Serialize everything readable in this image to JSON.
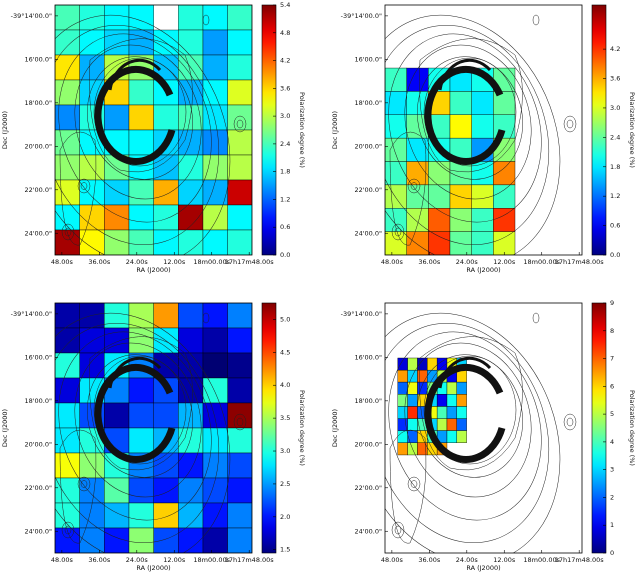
{
  "chart_data": [
    {
      "type": "heatmap",
      "colormap": "jet",
      "x_label": "RA (J2000)",
      "y_label": "Dec (J2000)",
      "colorbar_label": "Polarization degree (%)",
      "xlim": [
        50.2,
        -12.9
      ],
      "xticks": [
        {
          "value": 48,
          "label": "48.00s"
        },
        {
          "value": 36,
          "label": "36.00s"
        },
        {
          "value": 24,
          "label": "24.00s"
        },
        {
          "value": 12,
          "label": "12.00s"
        },
        {
          "value": 0,
          "label": "18m00.00s"
        },
        {
          "value": -12,
          "label": "17h17m48.00s"
        }
      ],
      "ylim": [
        13.5,
        25
      ],
      "yticks": [
        {
          "value": 14,
          "label": "-39°14'00.0\""
        },
        {
          "value": 16,
          "label": "16'00.0\""
        },
        {
          "value": 18,
          "label": "18'00.0\""
        },
        {
          "value": 20,
          "label": "20'00.0\""
        },
        {
          "value": 22,
          "label": "22'00.0\""
        },
        {
          "value": 24,
          "label": "24'00.0\""
        }
      ],
      "x_edges": [
        50.2,
        42.3,
        34.4,
        26.5,
        18.6,
        10.7,
        2.8,
        -5.1,
        -12.9
      ],
      "y_edges": [
        13.5,
        14.65,
        15.8,
        16.95,
        18.1,
        19.25,
        20.4,
        21.55,
        22.7,
        23.85,
        25.0
      ],
      "values": [
        [
          2.4,
          2.2,
          2.0,
          2.0,
          null,
          2.2,
          2.0,
          2.3
        ],
        [
          2.3,
          2.0,
          1.8,
          1.6,
          2.0,
          2.2,
          1.5,
          2.0
        ],
        [
          3.5,
          1.6,
          3.0,
          2.8,
          1.7,
          2.4,
          1.6,
          2.2
        ],
        [
          2.8,
          1.8,
          3.6,
          2.3,
          2.0,
          1.6,
          2.0,
          3.2
        ],
        [
          1.4,
          2.2,
          1.5,
          3.6,
          2.2,
          2.4,
          1.9,
          2.6
        ],
        [
          2.6,
          2.0,
          2.0,
          2.0,
          1.8,
          1.6,
          1.4,
          3.0
        ],
        [
          2.8,
          3.0,
          2.6,
          2.0,
          1.7,
          2.2,
          2.8,
          3.0
        ],
        [
          3.2,
          2.0,
          1.8,
          2.4,
          3.8,
          1.8,
          1.6,
          5.0
        ],
        [
          2.0,
          3.6,
          4.0,
          2.0,
          2.2,
          5.2,
          3.0,
          2.0
        ],
        [
          5.2,
          3.4,
          2.8,
          2.4,
          2.0,
          2.2,
          2.0,
          2.2
        ]
      ],
      "clim": [
        0,
        5.4
      ],
      "cticks": [
        {
          "value": 0,
          "label": "0.0"
        },
        0.6,
        1.2,
        1.8,
        2.4,
        {
          "value": 3,
          "label": "3.0"
        },
        3.6,
        4.2,
        4.8,
        5.4
      ]
    },
    {
      "type": "heatmap",
      "colormap": "jet",
      "x_label": "RA (J2000)",
      "y_label": "Dec (J2000)",
      "colorbar_label": "Polarization degree (%)",
      "xlim": [
        50.2,
        -12.9
      ],
      "xticks": [
        {
          "value": 48,
          "label": "48.00s"
        },
        {
          "value": 36,
          "label": "36.00s"
        },
        {
          "value": 24,
          "label": "24.00s"
        },
        {
          "value": 12,
          "label": "12.00s"
        },
        {
          "value": 0,
          "label": "18m00.00s"
        },
        {
          "value": -12,
          "label": "17h17m48.00s"
        }
      ],
      "ylim": [
        13.5,
        25
      ],
      "yticks": [
        {
          "value": 14,
          "label": "-39°14'00.0\""
        },
        {
          "value": 16,
          "label": "16'00.0\""
        },
        {
          "value": 18,
          "label": "18'00.0\""
        },
        {
          "value": 20,
          "label": "20'00.0\""
        },
        {
          "value": 22,
          "label": "22'00.0\""
        },
        {
          "value": 24,
          "label": "24'00.0\""
        }
      ],
      "x_edges": [
        50.2,
        43.26,
        36.32,
        29.38,
        22.44,
        15.5,
        8.56
      ],
      "y_edges": [
        16.4,
        17.475,
        18.55,
        19.625,
        20.7,
        21.775,
        22.85,
        23.925,
        25.0
      ],
      "values": [
        [
          2.2,
          0.6,
          2.0,
          1.8,
          2.0,
          2.4
        ],
        [
          1.8,
          2.0,
          3.4,
          2.2,
          1.8,
          2.4
        ],
        [
          2.0,
          2.4,
          2.2,
          3.2,
          2.0,
          2.2
        ],
        [
          2.4,
          1.8,
          2.0,
          2.2,
          1.4,
          2.6
        ],
        [
          2.2,
          3.6,
          2.6,
          2.4,
          2.0,
          3.8
        ],
        [
          2.8,
          2.4,
          2.4,
          3.4,
          3.0,
          2.2
        ],
        [
          2.2,
          2.8,
          4.0,
          2.6,
          2.2,
          4.2
        ],
        [
          3.0,
          3.8,
          4.2,
          2.4,
          2.2,
          3.0
        ]
      ],
      "clim": [
        0,
        5.1
      ],
      "cticks": [
        {
          "value": 0,
          "label": "0.0"
        },
        0.6,
        1.2,
        1.8,
        2.4,
        {
          "value": 3,
          "label": "3.0"
        },
        3.6,
        4.2
      ]
    },
    {
      "type": "heatmap",
      "colormap": "jet",
      "x_label": "RA (J2000)",
      "y_label": "Dec (J2000)",
      "colorbar_label": "Polarization degree (%)",
      "xlim": [
        50.2,
        -12.9
      ],
      "xticks": [
        {
          "value": 48,
          "label": "48.00s"
        },
        {
          "value": 36,
          "label": "36.00s"
        },
        {
          "value": 24,
          "label": "24.00s"
        },
        {
          "value": 12,
          "label": "12.00s"
        },
        {
          "value": 0,
          "label": "18m00.00s"
        },
        {
          "value": -12,
          "label": "17h17m48.00s"
        }
      ],
      "ylim": [
        13.5,
        25
      ],
      "yticks": [
        {
          "value": 14,
          "label": "-39°14'00.0\""
        },
        {
          "value": 16,
          "label": "16'00.0\""
        },
        {
          "value": 18,
          "label": "18'00.0\""
        },
        {
          "value": 20,
          "label": "20'00.0\""
        },
        {
          "value": 22,
          "label": "22'00.0\""
        },
        {
          "value": 24,
          "label": "24'00.0\""
        }
      ],
      "x_edges": [
        50.2,
        42.3,
        34.4,
        26.5,
        18.6,
        10.7,
        2.8,
        -5.1,
        -12.9
      ],
      "y_edges": [
        13.5,
        14.65,
        15.8,
        16.95,
        18.1,
        19.25,
        20.4,
        21.55,
        22.7,
        23.85,
        25.0
      ],
      "values": [
        [
          1.6,
          1.6,
          3.0,
          3.5,
          4.2,
          2.2,
          2.0,
          2.4
        ],
        [
          1.6,
          1.8,
          1.8,
          3.4,
          2.8,
          1.8,
          1.6,
          2.0
        ],
        [
          3.0,
          1.8,
          2.8,
          2.4,
          1.6,
          1.6,
          1.4,
          1.5
        ],
        [
          1.8,
          2.8,
          2.4,
          2.0,
          2.2,
          1.6,
          3.0,
          1.6
        ],
        [
          2.8,
          2.2,
          1.6,
          2.2,
          2.2,
          2.6,
          1.8,
          5.2
        ],
        [
          2.8,
          3.0,
          2.2,
          2.8,
          2.6,
          3.0,
          2.8,
          3.0
        ],
        [
          3.8,
          3.4,
          3.0,
          2.4,
          2.2,
          2.0,
          2.4,
          2.2
        ],
        [
          3.0,
          2.4,
          3.2,
          2.2,
          2.0,
          2.4,
          2.2,
          2.0
        ],
        [
          3.0,
          2.4,
          2.6,
          3.0,
          4.0,
          2.6,
          2.0,
          2.4
        ],
        [
          2.0,
          2.4,
          2.0,
          3.4,
          2.2,
          2.0,
          1.6,
          2.4
        ]
      ],
      "clim": [
        1.45,
        5.25
      ],
      "cticks": [
        1.5,
        {
          "value": 2,
          "label": "2.0"
        },
        2.5,
        {
          "value": 3,
          "label": "3.0"
        },
        3.5,
        {
          "value": 4,
          "label": "4.0"
        },
        4.5,
        {
          "value": 5,
          "label": "5.0"
        }
      ]
    },
    {
      "type": "heatmap",
      "colormap": "jet",
      "x_label": "RA (J2000)",
      "y_label": "Dec (J2000)",
      "colorbar_label": "Polarization degree (%)",
      "xlim": [
        50.2,
        -12.9
      ],
      "xticks": [
        {
          "value": 48,
          "label": "48.00s"
        },
        {
          "value": 36,
          "label": "36.00s"
        },
        {
          "value": 24,
          "label": "24.00s"
        },
        {
          "value": 12,
          "label": "12.00s"
        },
        {
          "value": 0,
          "label": "18m00.00s"
        },
        {
          "value": -12,
          "label": "17h17m48.00s"
        }
      ],
      "ylim": [
        13.5,
        25
      ],
      "yticks": [
        {
          "value": 14,
          "label": "-39°14'00.0\""
        },
        {
          "value": 16,
          "label": "16'00.0\""
        },
        {
          "value": 18,
          "label": "18'00.0\""
        },
        {
          "value": 20,
          "label": "20'00.0\""
        },
        {
          "value": 22,
          "label": "22'00.0\""
        },
        {
          "value": 24,
          "label": "24'00.0\""
        }
      ],
      "x_edges": [
        46.1,
        42.95,
        39.8,
        36.65,
        33.5,
        30.35,
        27.2,
        24.05
      ],
      "y_edges": [
        16.03,
        16.59,
        17.14,
        17.7,
        18.26,
        18.82,
        19.37,
        19.93,
        20.49
      ],
      "values": [
        [
          0.8,
          5.0,
          0.6,
          6.0,
          1.0,
          5.5,
          3.0
        ],
        [
          6.5,
          3.0,
          7.0,
          2.5,
          5.0,
          1.0,
          6.0
        ],
        [
          2.0,
          5.5,
          1.5,
          4.5,
          3.5,
          5.0,
          2.5
        ],
        [
          4.5,
          2.5,
          6.0,
          3.0,
          1.0,
          3.5,
          6.5
        ],
        [
          3.0,
          7.5,
          2.0,
          5.5,
          4.0,
          2.5,
          3.5
        ],
        [
          1.5,
          3.5,
          4.0,
          3.0,
          5.0,
          7.0,
          2.0
        ],
        [
          3.5,
          2.0,
          6.0,
          4.0,
          2.5,
          3.5,
          5.0
        ],
        [
          6.5,
          5.0,
          7.0,
          6.0,
          6.5,
          null,
          null
        ]
      ],
      "clim": [
        0,
        9
      ],
      "cticks": [
        0,
        1,
        2,
        3,
        4,
        5,
        6,
        7,
        8,
        9
      ]
    }
  ]
}
